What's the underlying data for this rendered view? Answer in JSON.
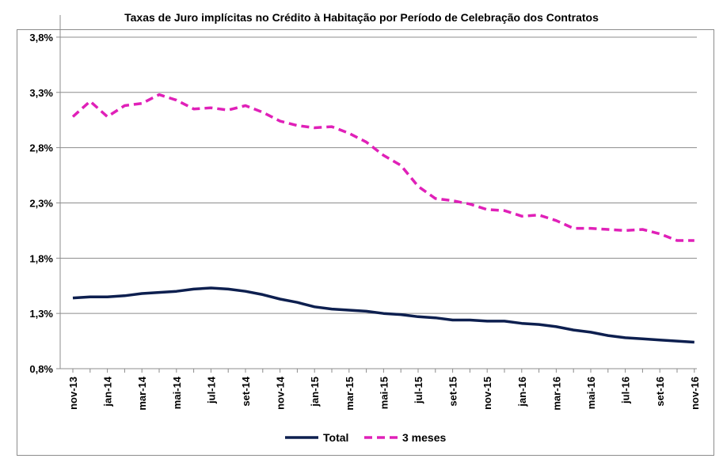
{
  "chart_data": {
    "type": "line",
    "title": "Taxas de Juro implícitas no Crédito à Habitação por Período de Celebração dos Contratos",
    "xlabel": "",
    "ylabel": "",
    "ylim": [
      0.8,
      4.0
    ],
    "yticks": [
      0.8,
      1.3,
      1.8,
      2.3,
      2.8,
      3.3,
      3.8
    ],
    "ytick_labels": [
      "0,8%",
      "1,3%",
      "1,8%",
      "2,3%",
      "2,8%",
      "3,3%",
      "3,8%"
    ],
    "x": [
      "nov-13",
      "dez-13",
      "jan-14",
      "fev-14",
      "mar-14",
      "abr-14",
      "mai-14",
      "jun-14",
      "jul-14",
      "ago-14",
      "set-14",
      "out-14",
      "nov-14",
      "dez-14",
      "jan-15",
      "fev-15",
      "mar-15",
      "abr-15",
      "mai-15",
      "jun-15",
      "jul-15",
      "ago-15",
      "set-15",
      "out-15",
      "nov-15",
      "dez-15",
      "jan-16",
      "fev-16",
      "mar-16",
      "abr-16",
      "mai-16",
      "jun-16",
      "jul-16",
      "ago-16",
      "set-16",
      "out-16",
      "nov-16"
    ],
    "xtick_labels": [
      "nov-13",
      "jan-14",
      "mar-14",
      "mai-14",
      "jul-14",
      "set-14",
      "nov-14",
      "jan-15",
      "mar-15",
      "mai-15",
      "jul-15",
      "set-15",
      "nov-15",
      "jan-16",
      "mar-16",
      "mai-16",
      "jul-16",
      "set-16",
      "nov-16"
    ],
    "grid": true,
    "legend_position": "bottom",
    "series": [
      {
        "name": "Total",
        "color": "#0d1f4f",
        "style": "solid",
        "values": [
          1.44,
          1.45,
          1.45,
          1.46,
          1.48,
          1.49,
          1.5,
          1.52,
          1.53,
          1.52,
          1.5,
          1.47,
          1.43,
          1.4,
          1.36,
          1.34,
          1.33,
          1.32,
          1.3,
          1.29,
          1.27,
          1.26,
          1.24,
          1.24,
          1.23,
          1.23,
          1.21,
          1.2,
          1.18,
          1.15,
          1.13,
          1.1,
          1.08,
          1.07,
          1.06,
          1.05,
          1.04
        ]
      },
      {
        "name": "3 meses",
        "color": "#e020b8",
        "style": "dashed",
        "values": [
          3.08,
          3.22,
          3.08,
          3.18,
          3.2,
          3.28,
          3.23,
          3.15,
          3.16,
          3.14,
          3.18,
          3.12,
          3.04,
          3.0,
          2.98,
          2.99,
          2.93,
          2.85,
          2.73,
          2.64,
          2.45,
          2.34,
          2.32,
          2.29,
          2.24,
          2.23,
          2.18,
          2.19,
          2.14,
          2.07,
          2.07,
          2.06,
          2.05,
          2.06,
          2.02,
          1.96,
          1.96
        ]
      }
    ]
  }
}
